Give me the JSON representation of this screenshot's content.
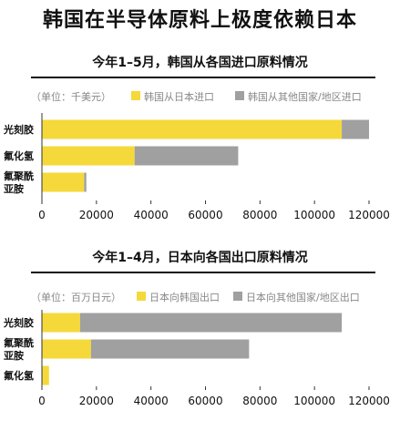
{
  "title": "韩国在半导体原料上极度依赖日本",
  "colors": {
    "primary": "#F5D93A",
    "secondary": "#A0A0A0",
    "rule": "#111111",
    "axis": "#333333"
  },
  "chart_data": [
    {
      "type": "bar",
      "orientation": "horizontal",
      "stacked": true,
      "title": "今年1–5月，韩国从各国进口原料情况",
      "unit_label": "（单位：千美元）",
      "categories": [
        "光刻胶",
        "氟化氢",
        "氟聚酰\n亚胺"
      ],
      "series": [
        {
          "name": "韩国从日本进口",
          "values": [
            110000,
            34000,
            15500
          ]
        },
        {
          "name": "韩国从其他国家/地区进口",
          "values": [
            10000,
            38000,
            800
          ]
        }
      ],
      "xlim": [
        0,
        120000
      ],
      "xticks": [
        0,
        20000,
        40000,
        60000,
        80000,
        100000,
        120000
      ],
      "legend": "top"
    },
    {
      "type": "bar",
      "orientation": "horizontal",
      "stacked": true,
      "title": "今年1–4月，日本向各国出口原料情况",
      "unit_label": "（单位：百万日元）",
      "categories": [
        "光刻胶",
        "氟聚酰\n亚胺",
        "氟化氢"
      ],
      "series": [
        {
          "name": "日本向韩国出口",
          "values": [
            14000,
            18000,
            2600
          ]
        },
        {
          "name": "日本向其他国家/地区出口",
          "values": [
            96000,
            58000,
            0
          ]
        }
      ],
      "xlim": [
        0,
        120000
      ],
      "xticks": [
        0,
        20000,
        40000,
        60000,
        80000,
        100000,
        120000
      ],
      "legend": "top"
    }
  ]
}
